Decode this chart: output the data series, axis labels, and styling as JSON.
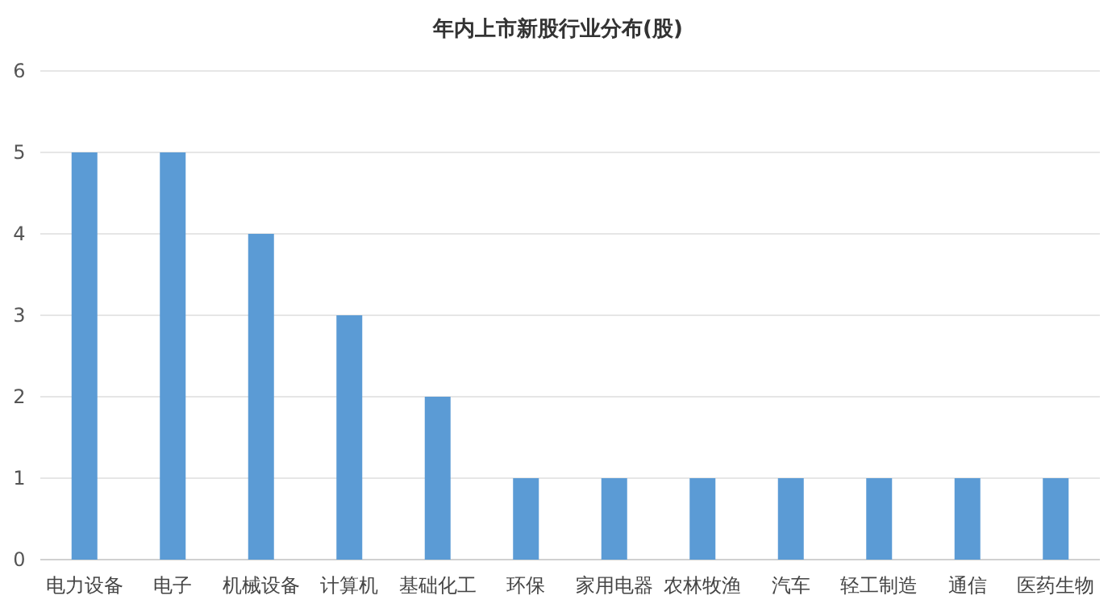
{
  "chart_data": {
    "type": "bar",
    "title": "年内上市新股行业分布(股)",
    "categories": [
      "电力设备",
      "电子",
      "机械设备",
      "计算机",
      "基础化工",
      "环保",
      "家用电器",
      "农林牧渔",
      "汽车",
      "轻工制造",
      "通信",
      "医药生物"
    ],
    "values": [
      5,
      5,
      4,
      3,
      2,
      1,
      1,
      1,
      1,
      1,
      1,
      1
    ],
    "color": "#5b9bd5",
    "ylim": [
      0,
      6
    ],
    "yticks": [
      0,
      1,
      2,
      3,
      4,
      5,
      6
    ],
    "grid": "y"
  }
}
